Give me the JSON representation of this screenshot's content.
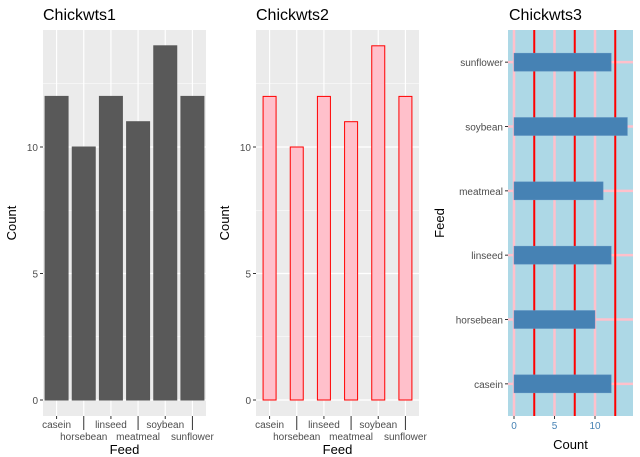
{
  "chart_data": [
    {
      "type": "bar",
      "title": "Chickwts1",
      "xlabel": "Feed",
      "ylabel": "Count",
      "categories": [
        "casein",
        "horsebean",
        "linseed",
        "meatmeal",
        "soybean",
        "sunflower"
      ],
      "values": [
        12,
        10,
        12,
        11,
        14,
        12
      ],
      "ylim": [
        0,
        14.6
      ],
      "yticks": [
        0,
        5,
        10
      ],
      "grid": true,
      "colors": {
        "bar_fill": "#595959",
        "bar_stroke": "#595959",
        "panel": "#ebebeb",
        "grid": "#ffffff"
      }
    },
    {
      "type": "bar",
      "title": "Chickwts2",
      "xlabel": "Feed",
      "ylabel": "Count",
      "categories": [
        "casein",
        "horsebean",
        "linseed",
        "meatmeal",
        "soybean",
        "sunflower"
      ],
      "values": [
        12,
        10,
        12,
        11,
        14,
        12
      ],
      "ylim": [
        0,
        14.6
      ],
      "yticks": [
        0,
        5,
        10
      ],
      "grid": true,
      "colors": {
        "bar_fill": "#ffc0cb",
        "bar_stroke": "#ff0000",
        "panel": "#ebebeb",
        "grid": "#ffffff"
      }
    },
    {
      "type": "bar",
      "orientation": "horizontal",
      "title": "Chickwts3",
      "xlabel": "Count",
      "ylabel": "Feed",
      "categories": [
        "casein",
        "horsebean",
        "linseed",
        "meatmeal",
        "soybean",
        "sunflower"
      ],
      "values": [
        12,
        10,
        12,
        11,
        14,
        12
      ],
      "xlim": [
        0,
        14.6
      ],
      "xticks": [
        0,
        5,
        10
      ],
      "grid": true,
      "colors": {
        "bar_fill": "#4682b4",
        "panel": "#add8e6",
        "major_grid": "#ffc0cb",
        "minor_grid": "#ff0000",
        "tick_text": "#4682b4"
      }
    }
  ]
}
